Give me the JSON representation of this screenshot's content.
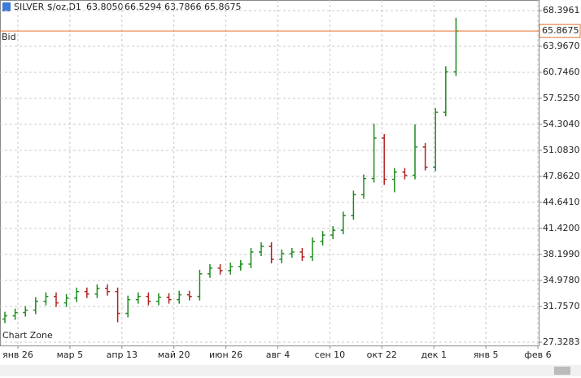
{
  "chart_data": {
    "type": "ohlc",
    "title": "SILVER $/oz,D1",
    "header_values": [
      "63.8050",
      "66.5294",
      "63.7866",
      "65.8675"
    ],
    "watermark": "Chart Zone",
    "bid_label": "Bid",
    "bid": 65.8675,
    "x_labels": [
      "янв 26",
      "мар 5",
      "апр 13",
      "май 20",
      "июн 26",
      "авг 4",
      "сен 10",
      "окт 22",
      "дек 1",
      "янв 5",
      "фев 6"
    ],
    "ylim": [
      27.3283,
      68.3961
    ],
    "yticks": [
      27.3283,
      {
        "value": 31.757,
        "label": "31.7570"
      },
      {
        "value": 34.978,
        "label": "34.9780"
      },
      {
        "value": 38.199,
        "label": "38.1990"
      },
      {
        "value": 41.42,
        "label": "41.4200"
      },
      {
        "value": 44.641,
        "label": "44.6410"
      },
      {
        "value": 47.862,
        "label": "47.8620"
      },
      {
        "value": 51.083,
        "label": "51.0830"
      },
      {
        "value": 54.304,
        "label": "54.3040"
      },
      {
        "value": 57.525,
        "label": "57.5250"
      },
      {
        "value": 60.746,
        "label": "60.7460"
      },
      {
        "value": 63.967,
        "label": "63.9670"
      },
      68.3961
    ],
    "grid": true,
    "up_color": "#1f8a1f",
    "down_color": "#b22222",
    "bid_color": "#e0702a",
    "open": [
      30.2,
      30.6,
      31.0,
      31.3,
      32.4,
      33.0,
      32.2,
      32.8,
      33.6,
      33.3,
      34.0,
      33.6,
      30.9,
      32.6,
      33.0,
      32.4,
      32.9,
      32.6,
      33.2,
      33.0,
      35.8,
      36.5,
      36.2,
      36.7,
      37.0,
      38.5,
      39.2,
      37.6,
      38.3,
      38.5,
      37.9,
      39.8,
      40.6,
      41.2,
      43.0,
      45.6,
      47.6,
      52.6,
      47.5,
      48.4,
      48.0,
      51.5,
      49.0,
      55.8,
      60.8
    ],
    "high": [
      31.1,
      31.5,
      31.8,
      32.9,
      33.5,
      33.5,
      33.3,
      34.1,
      34.1,
      34.5,
      34.5,
      34.1,
      33.1,
      33.5,
      33.5,
      33.4,
      33.4,
      33.7,
      33.7,
      36.3,
      37.0,
      37.0,
      37.2,
      37.5,
      39.0,
      39.7,
      39.7,
      38.8,
      39.0,
      39.0,
      40.3,
      41.1,
      41.7,
      43.5,
      46.1,
      48.1,
      54.4,
      53.1,
      48.9,
      48.9,
      54.3,
      52.0,
      56.3,
      61.5,
      67.5
    ],
    "low": [
      29.7,
      30.1,
      30.5,
      30.8,
      31.9,
      31.7,
      31.7,
      32.3,
      32.8,
      32.8,
      33.1,
      29.8,
      30.4,
      32.1,
      31.9,
      31.9,
      32.1,
      32.1,
      32.5,
      32.5,
      35.3,
      35.7,
      35.7,
      36.2,
      36.5,
      38.0,
      37.1,
      37.1,
      37.8,
      37.4,
      37.4,
      39.3,
      40.1,
      40.7,
      42.5,
      45.1,
      47.1,
      46.8,
      45.9,
      47.5,
      47.5,
      48.6,
      48.5,
      55.3,
      60.3
    ],
    "close": [
      30.6,
      31.0,
      31.3,
      32.4,
      33.0,
      32.2,
      32.8,
      33.6,
      33.3,
      34.0,
      33.6,
      30.9,
      32.6,
      33.0,
      32.4,
      32.9,
      32.6,
      33.2,
      33.0,
      35.8,
      36.5,
      36.2,
      36.7,
      37.0,
      38.5,
      39.2,
      37.6,
      38.3,
      38.5,
      37.9,
      39.8,
      40.6,
      41.2,
      43.0,
      45.6,
      47.6,
      52.6,
      47.5,
      48.4,
      48.0,
      51.5,
      49.0,
      55.8,
      60.8,
      65.87
    ]
  }
}
